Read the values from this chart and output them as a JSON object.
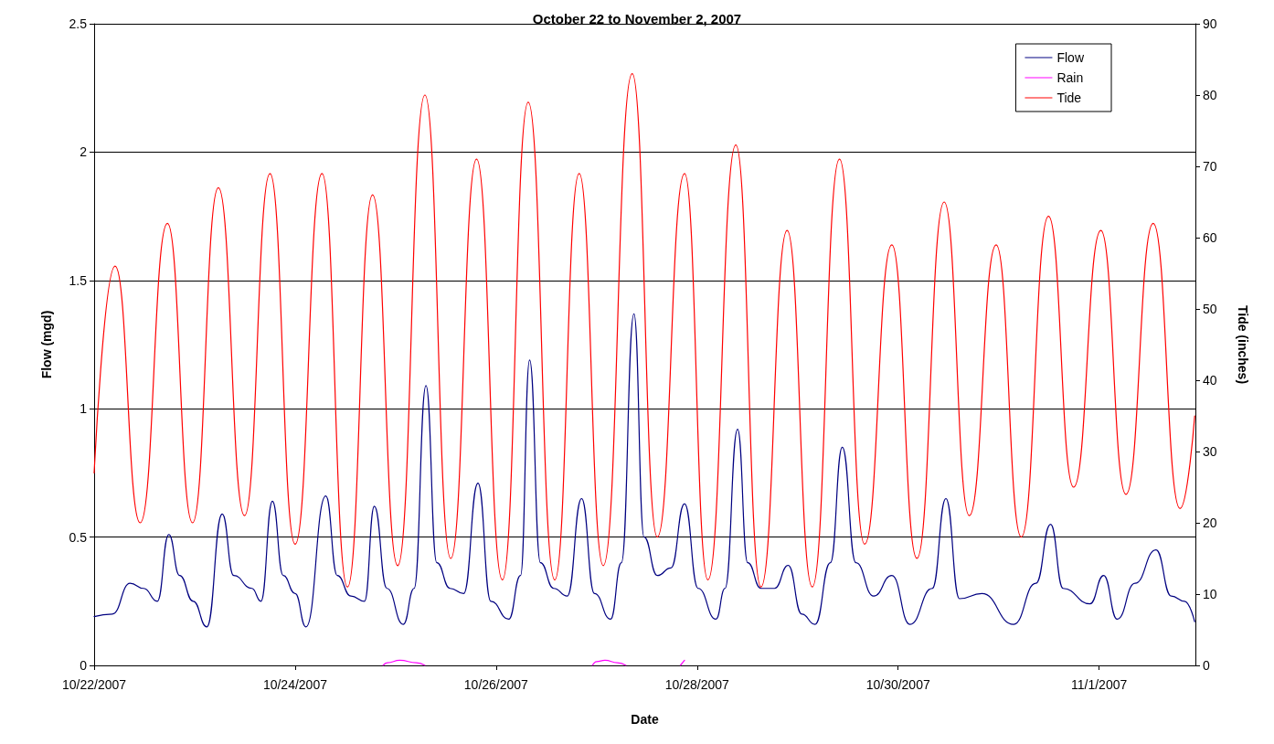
{
  "chart_data": {
    "type": "line",
    "title": "October 22 to November 2, 2007",
    "xlabel": "Date",
    "ylabel": "Flow (mgd)",
    "y2label": "Tide (inches)",
    "xlim": [
      "2007-10-22",
      "2007-11-01T23:00"
    ],
    "xticks": [
      {
        "value": "2007-10-22",
        "label": "10/22/2007"
      },
      {
        "value": "2007-10-24",
        "label": "10/24/2007"
      },
      {
        "value": "2007-10-26",
        "label": "10/26/2007"
      },
      {
        "value": "2007-10-28",
        "label": "10/28/2007"
      },
      {
        "value": "2007-10-30",
        "label": "10/30/2007"
      },
      {
        "value": "2007-11-01",
        "label": "11/1/2007"
      }
    ],
    "ylim": [
      0,
      2.5
    ],
    "yticks": [
      0,
      0.5,
      1,
      1.5,
      2,
      2.5
    ],
    "y2lim": [
      0,
      90
    ],
    "y2ticks": [
      0,
      10,
      20,
      30,
      40,
      50,
      60,
      70,
      80,
      90
    ],
    "grid": "y",
    "legend": "top right",
    "marker": "none",
    "line_style": "solid",
    "series": [
      {
        "name": "Flow",
        "color": "#000080",
        "x": [
          "2007-10-22T00:00",
          "2007-10-22T04:20",
          "2007-10-22T08:35",
          "2007-10-22T11:50",
          "2007-10-22T15:05",
          "2007-10-22T17:50",
          "2007-10-22T20:25",
          "2007-10-22T23:40",
          "2007-10-23T02:55",
          "2007-10-23T06:35",
          "2007-10-23T09:20",
          "2007-10-23T13:40",
          "2007-10-23T15:50",
          "2007-10-23T18:35",
          "2007-10-23T21:10",
          "2007-10-24T00:00",
          "2007-10-24T02:35",
          "2007-10-24T07:20",
          "2007-10-24T10:05",
          "2007-10-24T13:20",
          "2007-10-24T16:35",
          "2007-10-24T18:55",
          "2007-10-24T21:55",
          "2007-10-25T01:50",
          "2007-10-25T04:25",
          "2007-10-25T07:15",
          "2007-10-25T09:50",
          "2007-10-25T13:00",
          "2007-10-25T16:15",
          "2007-10-25T19:40",
          "2007-10-25T22:45",
          "2007-10-26T03:00",
          "2007-10-26T05:50",
          "2007-10-26T08:00",
          "2007-10-26T10:35",
          "2007-10-26T13:45",
          "2007-10-26T17:00",
          "2007-10-26T20:25",
          "2007-10-26T23:30",
          "2007-10-27T03:20",
          "2007-10-27T05:55",
          "2007-10-27T08:55",
          "2007-10-27T11:20",
          "2007-10-27T14:30",
          "2007-10-27T17:45",
          "2007-10-27T21:00",
          "2007-10-28T00:15",
          "2007-10-28T04:30",
          "2007-10-28T06:40",
          "2007-10-28T09:40",
          "2007-10-28T12:05",
          "2007-10-28T15:15",
          "2007-10-28T18:30",
          "2007-10-28T21:45",
          "2007-10-29T01:00",
          "2007-10-29T04:10",
          "2007-10-29T07:50",
          "2007-10-29T10:40",
          "2007-10-29T13:55",
          "2007-10-29T18:10",
          "2007-10-29T22:30",
          "2007-10-30T02:50",
          "2007-10-30T08:10",
          "2007-10-30T11:25",
          "2007-10-30T14:40",
          "2007-10-30T20:00",
          "2007-10-31T03:35",
          "2007-10-31T08:55",
          "2007-10-31T12:25",
          "2007-10-31T15:25",
          "2007-10-31T21:50",
          "2007-11-01T01:05",
          "2007-11-01T04:20",
          "2007-11-01T08:35",
          "2007-11-01T13:35",
          "2007-11-01T17:15",
          "2007-11-01T20:25",
          "2007-11-01T22:50"
        ],
        "values": [
          0.19,
          0.2,
          0.32,
          0.3,
          0.25,
          0.51,
          0.35,
          0.25,
          0.15,
          0.59,
          0.35,
          0.3,
          0.25,
          0.64,
          0.35,
          0.28,
          0.15,
          0.66,
          0.35,
          0.27,
          0.25,
          0.62,
          0.3,
          0.16,
          0.3,
          1.09,
          0.4,
          0.3,
          0.28,
          0.71,
          0.25,
          0.18,
          0.35,
          1.19,
          0.4,
          0.3,
          0.27,
          0.65,
          0.28,
          0.18,
          0.4,
          1.37,
          0.5,
          0.35,
          0.38,
          0.63,
          0.3,
          0.18,
          0.3,
          0.92,
          0.4,
          0.3,
          0.3,
          0.39,
          0.2,
          0.16,
          0.4,
          0.85,
          0.4,
          0.27,
          0.35,
          0.16,
          0.3,
          0.65,
          0.26,
          0.28,
          0.16,
          0.32,
          0.55,
          0.3,
          0.24,
          0.35,
          0.18,
          0.32,
          0.45,
          0.27,
          0.25,
          0.17
        ]
      },
      {
        "name": "Rain",
        "color": "#ff00ff",
        "x": [
          "2007-10-24T21:00",
          "2007-10-24T22:00",
          "2007-10-25T01:00",
          "2007-10-25T05:00",
          "2007-10-25T07:00",
          "2007-10-26T12:00",
          "2007-10-26T23:00",
          "2007-10-27T00:00",
          "2007-10-27T02:00",
          "2007-10-27T05:00",
          "2007-10-27T07:00",
          "2007-10-27T19:00",
          "2007-10-27T20:00",
          "2007-10-27T21:00"
        ],
        "values": [
          0,
          0.01,
          0.02,
          0.01,
          0,
          null,
          0,
          0.015,
          0.02,
          0.01,
          0,
          null,
          0,
          0.02
        ]
      },
      {
        "name": "Tide",
        "color": "#ff0000",
        "axis": "y2",
        "x": [
          "2007-10-22T00:00",
          "2007-10-22T05:00",
          "2007-10-22T11:00",
          "2007-10-22T17:30",
          "2007-10-22T23:30",
          "2007-10-23T05:40",
          "2007-10-23T11:55",
          "2007-10-23T18:00",
          "2007-10-24T00:00",
          "2007-10-24T06:25",
          "2007-10-24T12:30",
          "2007-10-24T18:30",
          "2007-10-25T00:30",
          "2007-10-25T07:00",
          "2007-10-25T13:10",
          "2007-10-25T19:20",
          "2007-10-26T01:30",
          "2007-10-26T07:40",
          "2007-10-26T14:00",
          "2007-10-26T19:50",
          "2007-10-27T01:35",
          "2007-10-27T08:30",
          "2007-10-27T14:30",
          "2007-10-27T21:00",
          "2007-10-28T02:35",
          "2007-10-28T09:15",
          "2007-10-28T15:15",
          "2007-10-28T21:30",
          "2007-10-29T03:30",
          "2007-10-29T10:00",
          "2007-10-29T16:00",
          "2007-10-29T22:30",
          "2007-10-30T04:30",
          "2007-10-30T11:00",
          "2007-10-30T17:00",
          "2007-10-30T23:25",
          "2007-10-31T05:25",
          "2007-10-31T11:55",
          "2007-10-31T17:55",
          "2007-11-01T00:25",
          "2007-11-01T06:25",
          "2007-11-01T12:55",
          "2007-11-01T19:20",
          "2007-11-01T22:50"
        ],
        "values": [
          27,
          56,
          20,
          62,
          20,
          67,
          21,
          69,
          17,
          69,
          11,
          66,
          14,
          80,
          15,
          71,
          12,
          79,
          12,
          69,
          14,
          83,
          18,
          69,
          12,
          73,
          11,
          61,
          11,
          71,
          17,
          59,
          15,
          65,
          21,
          59,
          18,
          63,
          25,
          61,
          24,
          62,
          22,
          35
        ]
      }
    ]
  }
}
